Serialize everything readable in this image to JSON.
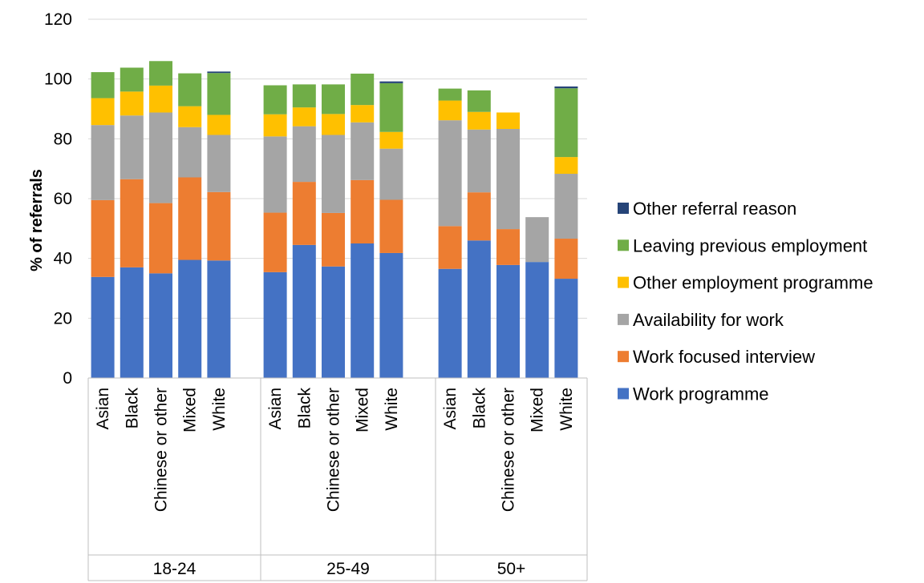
{
  "chart_data": {
    "type": "bar",
    "stacked": true,
    "ylabel": "% of referrals",
    "ylim": [
      0,
      120
    ],
    "yticks": [
      0,
      20,
      40,
      60,
      80,
      100,
      120
    ],
    "grid": true,
    "legend_position": "right",
    "groups": [
      {
        "label": "18-24",
        "categories": [
          "Asian",
          "Black",
          "Chinese or other",
          "Mixed",
          "White"
        ]
      },
      {
        "label": "25-49",
        "categories": [
          "Asian",
          "Black",
          "Chinese or other",
          "Mixed",
          "White"
        ]
      },
      {
        "label": "50+",
        "categories": [
          "Asian",
          "Black",
          "Chinese or other",
          "Mixed",
          "White"
        ]
      }
    ],
    "series": [
      {
        "name": "Work programme",
        "color": "#4472c4",
        "values": [
          33.8,
          37.0,
          35.0,
          39.5,
          39.3,
          35.4,
          44.5,
          37.3,
          45.0,
          41.8,
          36.5,
          46.0,
          37.8,
          38.8,
          33.2
        ]
      },
      {
        "name": "Work focused interview",
        "color": "#ed7d31",
        "values": [
          25.7,
          29.5,
          23.5,
          27.6,
          22.9,
          19.9,
          21.1,
          17.9,
          21.2,
          17.8,
          14.3,
          16.1,
          12.0,
          0,
          13.4
        ]
      },
      {
        "name": "Availability for work",
        "color": "#a5a5a5",
        "values": [
          25.1,
          21.3,
          30.3,
          16.8,
          19.1,
          25.5,
          18.6,
          26.1,
          19.3,
          17.1,
          35.4,
          21.0,
          33.5,
          15.0,
          21.7
        ]
      },
      {
        "name": "Other employment programme",
        "color": "#ffc000",
        "values": [
          9.0,
          8.0,
          9.0,
          7.0,
          6.7,
          7.4,
          6.3,
          7.0,
          5.8,
          5.6,
          6.6,
          5.9,
          5.5,
          0,
          5.6
        ]
      },
      {
        "name": "Leaving previous employment",
        "color": "#70ad47",
        "values": [
          8.7,
          8.0,
          8.2,
          11.0,
          14.0,
          9.7,
          7.7,
          9.9,
          10.5,
          16.3,
          4.0,
          7.2,
          0,
          0,
          23.0
        ]
      },
      {
        "name": "Other referral reason",
        "color": "#264478",
        "values": [
          0,
          0,
          0,
          0,
          0.5,
          0,
          0,
          0,
          0,
          0.6,
          0,
          0,
          0,
          0,
          0.6
        ]
      }
    ]
  }
}
